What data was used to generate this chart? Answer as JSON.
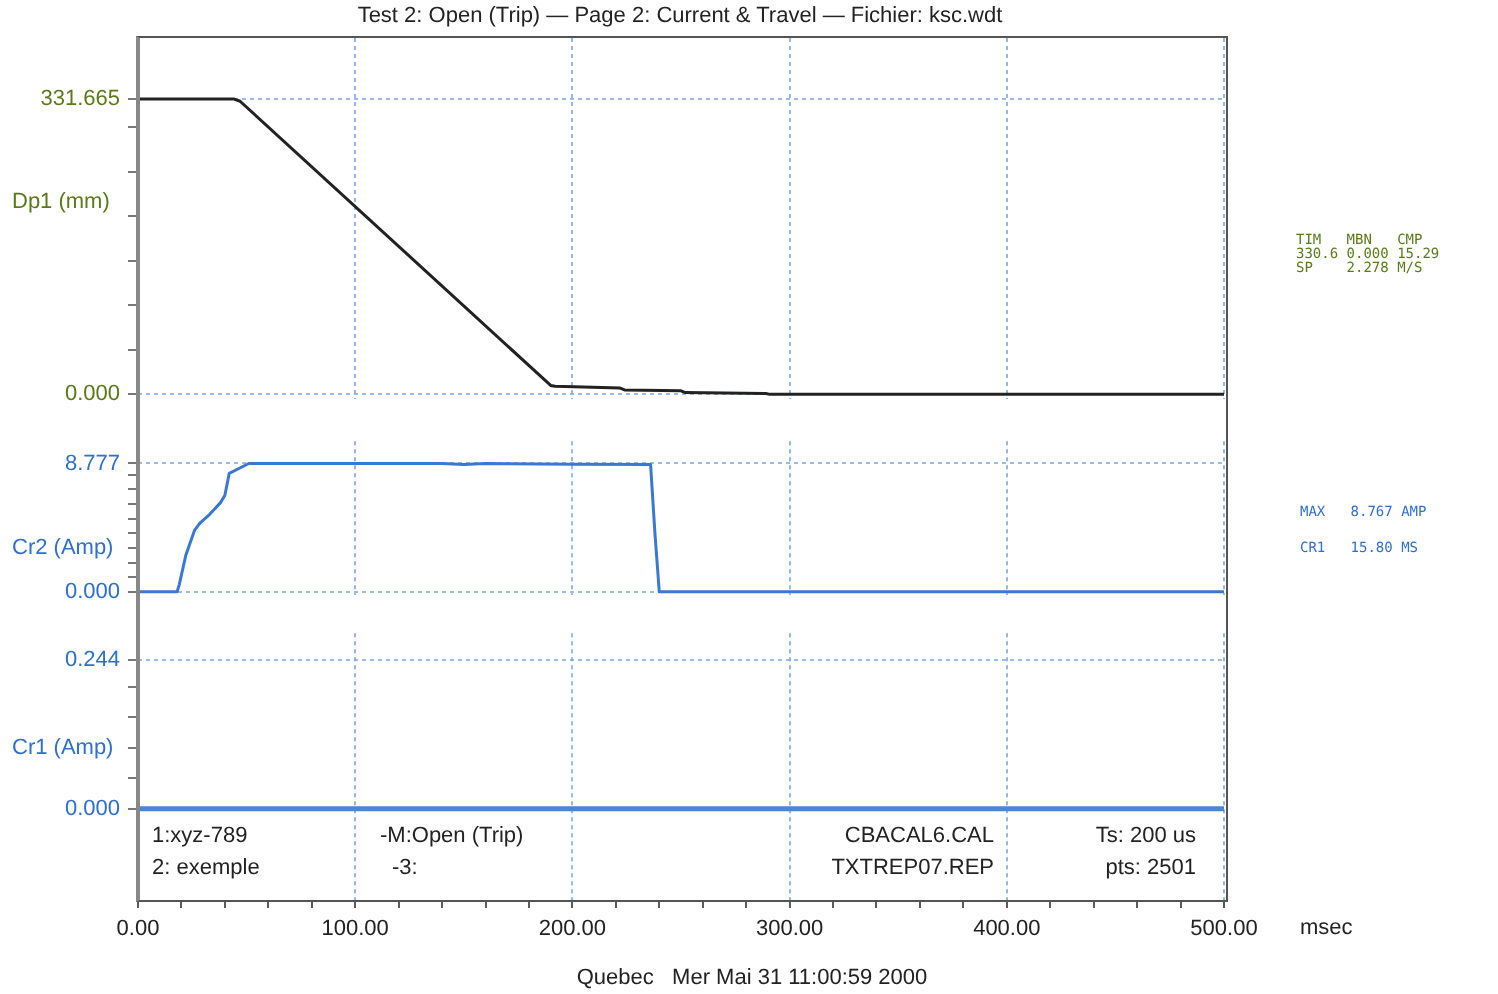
{
  "chart_data": [
    {
      "type": "line",
      "title": "Test 2: Open (Trip) — Page 2: Current & Travel — Fichier: ksc.wdt",
      "ylabel": "Dp1 (mm)",
      "xlim": [
        0,
        500
      ],
      "ylim": [
        -5,
        400
      ],
      "xticks": [
        0,
        100,
        200,
        300,
        400,
        500
      ],
      "yticks": [
        {
          "value": 0,
          "label": "0.000"
        },
        {
          "value": 50,
          "label": null
        },
        {
          "value": 100,
          "label": null
        },
        {
          "value": 150,
          "label": null
        },
        {
          "value": 200,
          "label": null
        },
        {
          "value": 250,
          "label": null
        },
        {
          "value": 300,
          "label": null
        },
        {
          "value": 331.665,
          "label": "331.665"
        }
      ],
      "tick_labels": "y",
      "grid": true,
      "legend": false,
      "series": [
        {
          "color": "#222222",
          "x": [
            0,
            44,
            47,
            190,
            192,
            222,
            224,
            250,
            252,
            289,
            291,
            500
          ],
          "values": [
            331.665,
            331.665,
            329,
            10,
            9,
            7,
            5,
            4,
            2,
            1,
            0,
            0
          ]
        }
      ],
      "annotations": [
        "TIM   MBN   CMP",
        "330.6 0.000 15.29",
        "SP    2.278 M/S"
      ]
    },
    {
      "type": "line",
      "ylabel": "Cr2 (Amp)",
      "xlim": [
        0,
        500
      ],
      "ylim": [
        -0.2,
        10.3
      ],
      "xticks": [
        0,
        100,
        200,
        300,
        400,
        500
      ],
      "yticks": [
        {
          "value": 0,
          "label": "0.000"
        },
        {
          "value": 1,
          "label": null
        },
        {
          "value": 2,
          "label": null
        },
        {
          "value": 3,
          "label": null
        },
        {
          "value": 4,
          "label": null
        },
        {
          "value": 5,
          "label": null
        },
        {
          "value": 6,
          "label": null
        },
        {
          "value": 7,
          "label": null
        },
        {
          "value": 8,
          "label": null
        },
        {
          "value": 8.777,
          "label": "8.777"
        }
      ],
      "tick_labels": "y",
      "grid": true,
      "legend": false,
      "series": [
        {
          "color": "#3a78d4",
          "x": [
            0,
            18,
            19,
            22,
            26,
            28.5,
            33,
            38,
            40,
            42,
            46,
            51,
            140,
            150,
            160,
            200,
            236,
            238,
            240,
            500
          ],
          "values": [
            0,
            0,
            0.5,
            2.5,
            4.2,
            4.7,
            5.3,
            6.1,
            6.6,
            8.1,
            8.4,
            8.777,
            8.777,
            8.7,
            8.777,
            8.72,
            8.7,
            4,
            0,
            0
          ]
        }
      ],
      "annotations": [
        "MAX   8.767 AMP",
        "CR1   15.80 MS"
      ]
    },
    {
      "type": "line",
      "ylabel": "Cr1 (Amp)",
      "xlabel": "msec",
      "xlim": [
        0,
        500
      ],
      "ylim": [
        -0.15,
        0.288
      ],
      "xticks": [
        {
          "value": 0,
          "label": "0.00"
        },
        {
          "value": 20,
          "label": null
        },
        {
          "value": 40,
          "label": null
        },
        {
          "value": 60,
          "label": null
        },
        {
          "value": 80,
          "label": null
        },
        {
          "value": 100,
          "label": "100.00"
        },
        {
          "value": 120,
          "label": null
        },
        {
          "value": 140,
          "label": null
        },
        {
          "value": 160,
          "label": null
        },
        {
          "value": 180,
          "label": null
        },
        {
          "value": 200,
          "label": "200.00"
        },
        {
          "value": 220,
          "label": null
        },
        {
          "value": 240,
          "label": null
        },
        {
          "value": 260,
          "label": null
        },
        {
          "value": 280,
          "label": null
        },
        {
          "value": 300,
          "label": "300.00"
        },
        {
          "value": 320,
          "label": null
        },
        {
          "value": 340,
          "label": null
        },
        {
          "value": 360,
          "label": null
        },
        {
          "value": 380,
          "label": null
        },
        {
          "value": 400,
          "label": "400.00"
        },
        {
          "value": 420,
          "label": null
        },
        {
          "value": 440,
          "label": null
        },
        {
          "value": 460,
          "label": null
        },
        {
          "value": 480,
          "label": null
        },
        {
          "value": 500,
          "label": "500.00"
        }
      ],
      "yticks": [
        {
          "value": 0,
          "label": "0.000"
        },
        {
          "value": 0.05,
          "label": null
        },
        {
          "value": 0.1,
          "label": null
        },
        {
          "value": 0.15,
          "label": null
        },
        {
          "value": 0.2,
          "label": null
        },
        {
          "value": 0.244,
          "label": "0.244"
        }
      ],
      "grid": true,
      "legend": false,
      "series": [
        {
          "color": "#4a86d8",
          "x": [
            0,
            500
          ],
          "values": [
            0,
            0
          ]
        }
      ],
      "annotations": [
        "1:xyz-789",
        "-M:Open (Trip)",
        "CBACAL6.CAL",
        "Ts: 200 us",
        "2: exemple",
        "-3:",
        "TXTREP07.REP",
        "pts: 2501",
        "Quebec   Mer Mai 31 11:00:59 2000"
      ]
    }
  ]
}
